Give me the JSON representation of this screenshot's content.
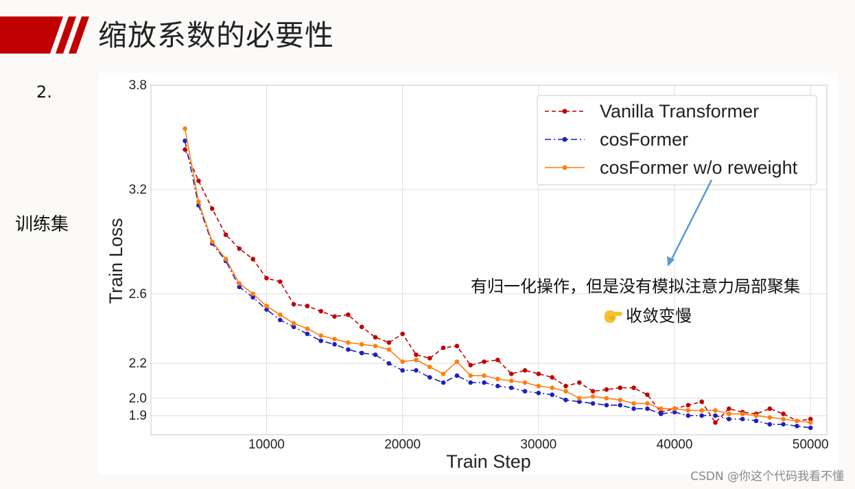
{
  "header": {
    "title": "缩放系数的必要性",
    "accent_color": "#c00000"
  },
  "slide": {
    "number": "2.",
    "side_label": "训练集"
  },
  "annotation": {
    "line1": "有归一化操作，但是没有模拟注意力局部聚集",
    "line2_icon": "pointing-hand-emoji",
    "line2": "收敛变慢",
    "arrow_color": "#5b9bd5"
  },
  "watermark": "CSDN @你这个代码我看不懂",
  "chart_data": {
    "type": "line",
    "xlabel": "Train Step",
    "ylabel": "Train Loss",
    "xlim": [
      1500,
      51200
    ],
    "ylim": [
      1.79,
      3.8
    ],
    "xticks": [
      10000,
      20000,
      30000,
      40000,
      50000
    ],
    "yticks": [
      1.9,
      2.0,
      2.2,
      2.6,
      3.2,
      3.8
    ],
    "ytick_labels": [
      "1.9",
      "2.0",
      "2.2",
      "2.6",
      "3.2",
      "3.8"
    ],
    "grid": true,
    "legend_position": "top-right",
    "x": [
      4000,
      5000,
      6000,
      7000,
      8000,
      9000,
      10000,
      11000,
      12000,
      13000,
      14000,
      15000,
      16000,
      17000,
      18000,
      19000,
      20000,
      21000,
      22000,
      23000,
      24000,
      25000,
      26000,
      27000,
      28000,
      29000,
      30000,
      31000,
      32000,
      33000,
      34000,
      35000,
      36000,
      37000,
      38000,
      39000,
      40000,
      41000,
      42000,
      43000,
      44000,
      45000,
      46000,
      47000,
      48000,
      49000,
      50000
    ],
    "series": [
      {
        "name": "Vanilla Transformer",
        "color": "#c00000",
        "style": "dashed",
        "values": [
          3.43,
          3.25,
          3.09,
          2.94,
          2.86,
          2.8,
          2.69,
          2.67,
          2.54,
          2.53,
          2.5,
          2.47,
          2.48,
          2.41,
          2.35,
          2.32,
          2.37,
          2.25,
          2.23,
          2.29,
          2.3,
          2.19,
          2.21,
          2.22,
          2.14,
          2.16,
          2.14,
          2.12,
          2.07,
          2.09,
          2.04,
          2.05,
          2.06,
          2.06,
          2.02,
          1.92,
          1.94,
          1.96,
          1.98,
          1.86,
          1.94,
          1.92,
          1.91,
          1.94,
          1.91,
          1.87,
          1.88
        ]
      },
      {
        "name": "cosFormer",
        "color": "#1f1fbf",
        "style": "dashdot",
        "values": [
          3.48,
          3.11,
          2.89,
          2.79,
          2.64,
          2.58,
          2.51,
          2.45,
          2.41,
          2.37,
          2.33,
          2.31,
          2.28,
          2.26,
          2.25,
          2.2,
          2.16,
          2.16,
          2.12,
          2.09,
          2.13,
          2.09,
          2.09,
          2.07,
          2.06,
          2.04,
          2.03,
          2.02,
          1.99,
          1.98,
          1.97,
          1.96,
          1.96,
          1.94,
          1.94,
          1.91,
          1.92,
          1.9,
          1.9,
          1.9,
          1.88,
          1.88,
          1.87,
          1.85,
          1.85,
          1.84,
          1.83
        ]
      },
      {
        "name": "cosFormer w/o reweight",
        "color": "#ff7f0e",
        "style": "solid",
        "values": [
          3.55,
          3.13,
          2.9,
          2.8,
          2.66,
          2.6,
          2.53,
          2.48,
          2.43,
          2.4,
          2.36,
          2.34,
          2.32,
          2.31,
          2.3,
          2.28,
          2.21,
          2.22,
          2.18,
          2.14,
          2.21,
          2.13,
          2.13,
          2.11,
          2.1,
          2.09,
          2.07,
          2.06,
          2.04,
          2.0,
          2.01,
          2.0,
          1.99,
          1.97,
          1.97,
          1.94,
          1.94,
          1.93,
          1.93,
          1.93,
          1.91,
          1.91,
          1.9,
          1.89,
          1.88,
          1.87,
          1.86
        ]
      }
    ]
  }
}
